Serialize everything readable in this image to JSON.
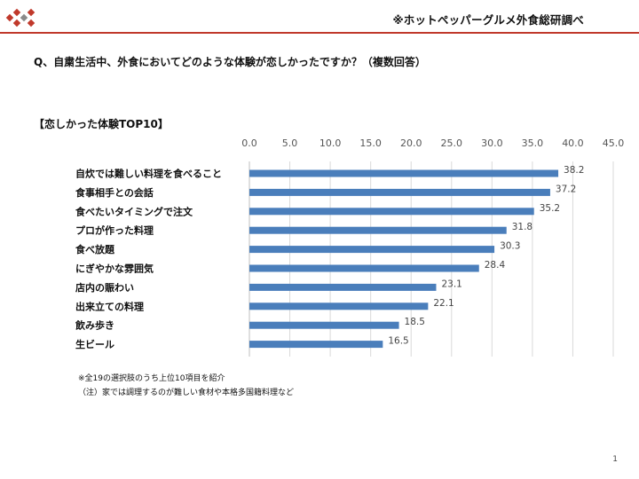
{
  "header": {
    "source_note": "※ホットペッパーグルメ外食総研調べ"
  },
  "question": "Q、自粛生活中、外食においてどのような体験が恋しかったですか？（複数回答）",
  "section_heading": "【恋しかった体験TOP10】",
  "chart_data": {
    "type": "bar",
    "orientation": "horizontal",
    "title": "",
    "xlabel": "",
    "ylabel": "",
    "xlim": [
      0,
      45
    ],
    "ticks": [
      "0.0",
      "5.0",
      "10.0",
      "15.0",
      "20.0",
      "25.0",
      "30.0",
      "35.0",
      "40.0",
      "45.0"
    ],
    "grid": true,
    "legend": "none",
    "bar_color": "#4a7ebb",
    "categories": [
      "自炊では難しい料理を食べること",
      "食事相手との会話",
      "食べたいタイミングで注文",
      "プロが作った料理",
      "食べ放題",
      "にぎやかな雰囲気",
      "店内の賑わい",
      "出来立ての料理",
      "飲み歩き",
      "生ビール"
    ],
    "values": [
      38.2,
      37.2,
      35.2,
      31.8,
      30.3,
      28.4,
      23.1,
      22.1,
      18.5,
      16.5
    ],
    "value_labels": [
      "38.2",
      "37.2",
      "35.2",
      "31.8",
      "30.3",
      "28.4",
      "23.1",
      "22.1",
      "18.5",
      "16.5"
    ]
  },
  "footnotes": [
    "※全19の選択肢のうち上位10項目を紹介",
    "（注）家では調理するのが難しい食材や本格多国籍料理など"
  ],
  "page_number": "1"
}
